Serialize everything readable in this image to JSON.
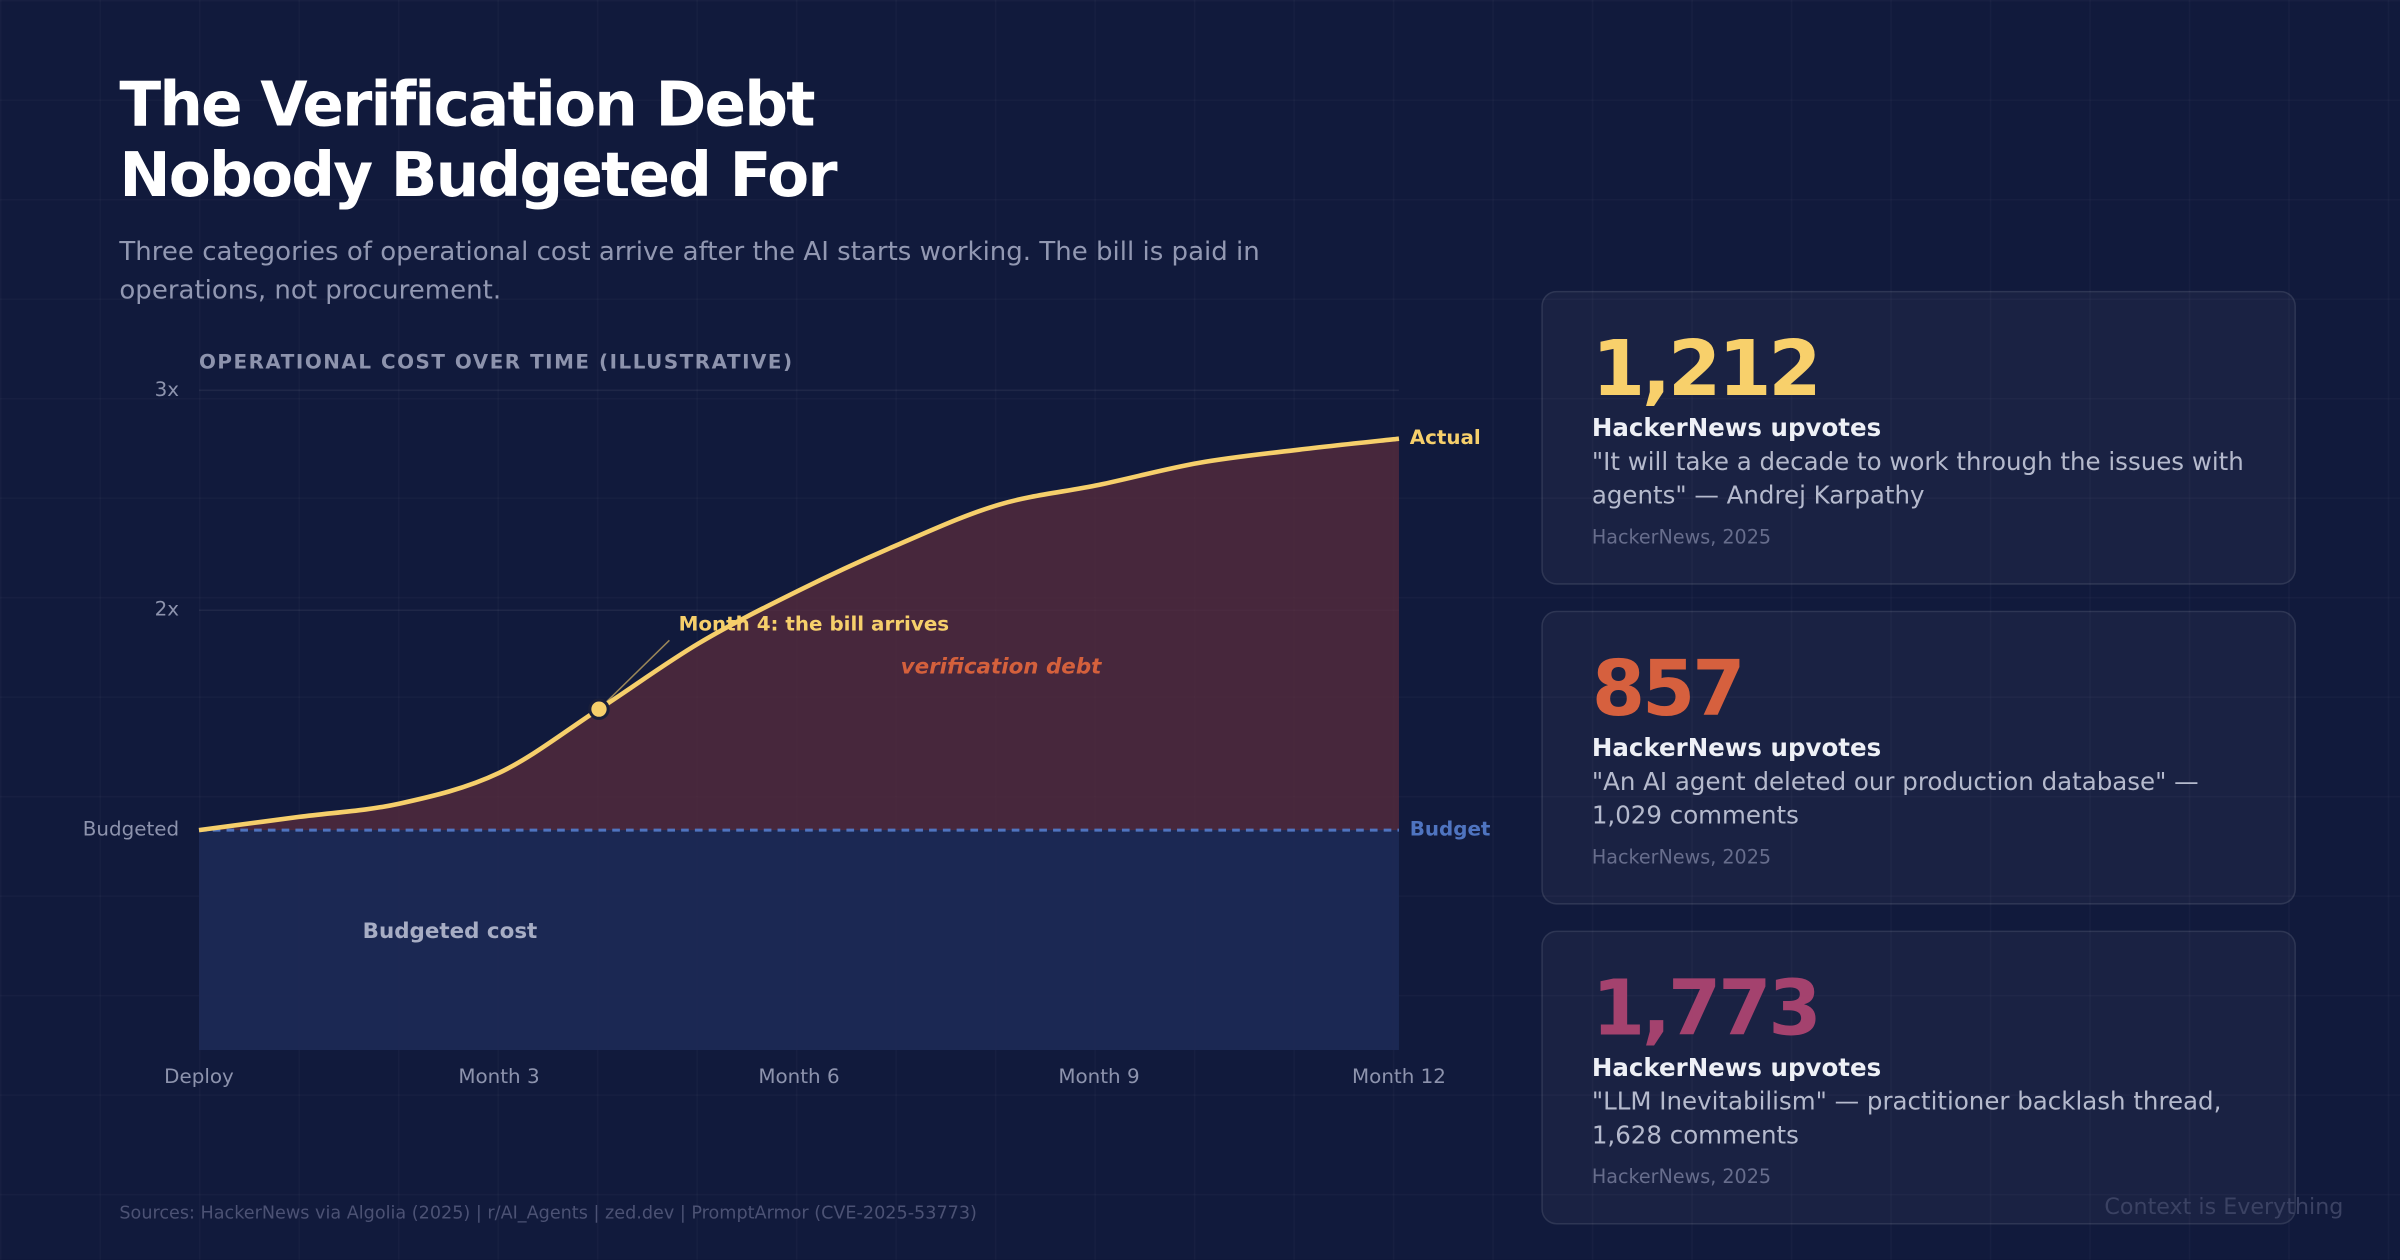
{
  "header": {
    "title": [
      "The Verification Debt",
      "Nobody Budgeted For"
    ],
    "subtitle": "Three categories of operational cost arrive after the AI starts working. The bill is paid in operations, not procurement."
  },
  "chart_data": {
    "type": "line",
    "title": "OPERATIONAL COST OVER TIME (ILLUSTRATIVE)",
    "x": [
      0,
      1,
      2,
      3,
      4,
      5,
      6,
      7,
      8,
      9,
      10,
      11,
      12
    ],
    "xlim": [
      0,
      12
    ],
    "xticks": [
      {
        "value": 0,
        "label": "Deploy"
      },
      {
        "value": 3,
        "label": "Month 3"
      },
      {
        "value": 6,
        "label": "Month 6"
      },
      {
        "value": 9,
        "label": "Month 9"
      },
      {
        "value": 12,
        "label": "Month 12"
      }
    ],
    "ylim": [
      0,
      3
    ],
    "yticks": [
      {
        "value": 1,
        "label": "Budgeted"
      },
      {
        "value": 2,
        "label": "2x"
      },
      {
        "value": 3,
        "label": "3x"
      }
    ],
    "grid": true,
    "series": [
      {
        "name": "Actual",
        "color": "#f6cf6b",
        "values": [
          1.0,
          1.06,
          1.12,
          1.26,
          1.55,
          1.85,
          2.09,
          2.3,
          2.48,
          2.57,
          2.67,
          2.73,
          2.78
        ]
      },
      {
        "name": "Budget",
        "color": "#4f74c0",
        "values": [
          1,
          1,
          1,
          1,
          1,
          1,
          1,
          1,
          1,
          1,
          1,
          1,
          1
        ]
      }
    ],
    "annotations": [
      {
        "text": "Month 4: the bill arrives",
        "x": 4
      }
    ],
    "area_labels": [
      "verification debt",
      "Budgeted cost"
    ]
  },
  "cards": [
    {
      "number": "1,212",
      "color": "#f8d06b",
      "label": "HackerNews upvotes",
      "quote": "\"It will take a decade to work through the issues with agents\" — Andrej Karpathy",
      "source": "HackerNews, 2025"
    },
    {
      "number": "857",
      "color": "#d6603e",
      "label": "HackerNews upvotes",
      "quote": "\"An AI agent deleted our production database\" — 1,029 comments",
      "source": "HackerNews, 2025"
    },
    {
      "number": "1,773",
      "color": "#a4426e",
      "label": "HackerNews upvotes",
      "quote": "\"LLM Inevitabilism\" — practitioner backlash thread, 1,628 comments",
      "source": "HackerNews, 2025"
    }
  ],
  "footer": {
    "sources": "Sources: HackerNews via Algolia (2025) | r/AI_Agents | zed.dev | PromptArmor (CVE-2025-53773)",
    "brand": "Context is Everything"
  }
}
